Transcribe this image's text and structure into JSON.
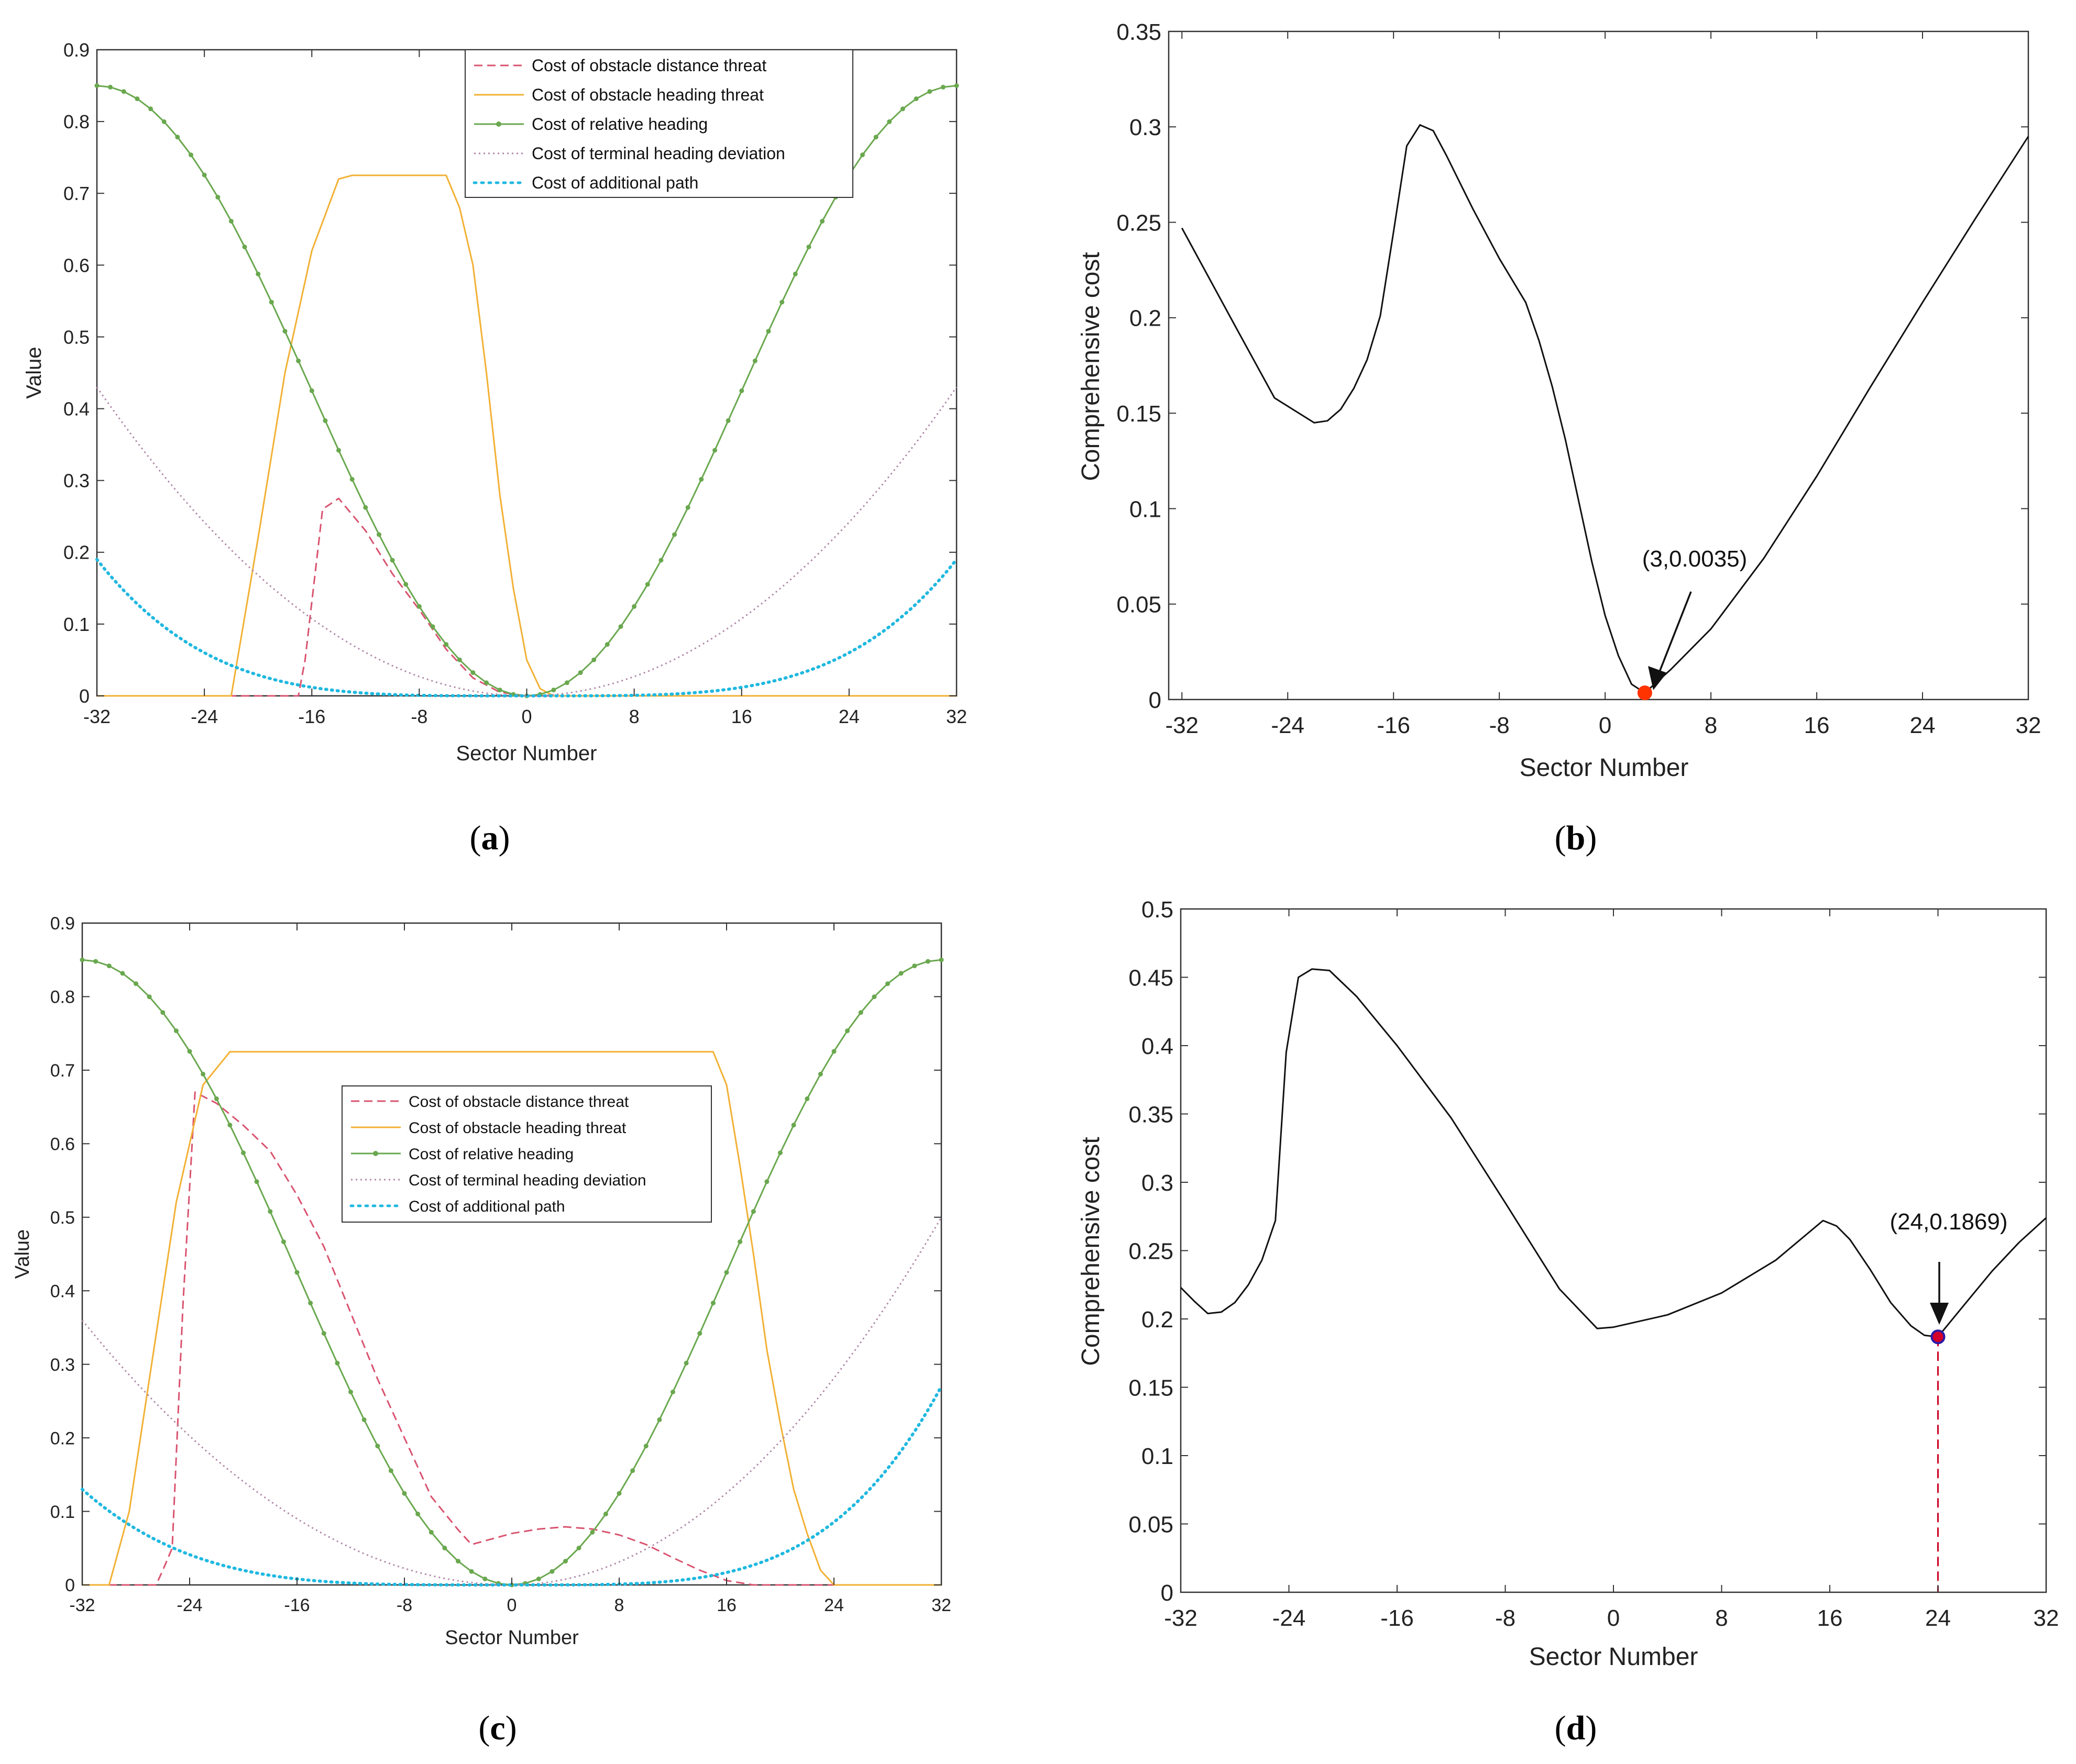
{
  "chart_data": [
    {
      "type": "line",
      "caption": "(a)",
      "caption_letter": "a",
      "xlabel": "Sector Number",
      "ylabel": "Value",
      "xlim": [
        -32,
        32
      ],
      "ylim": [
        0,
        0.9
      ],
      "xticks": [
        -32,
        -24,
        -16,
        -8,
        0,
        8,
        16,
        24,
        32
      ],
      "xtick_labels": [
        "-32",
        "-24",
        "-16",
        "-8",
        "0",
        "8",
        "16",
        "24",
        "32"
      ],
      "yticks": [
        0,
        0.1,
        0.2,
        0.3,
        0.4,
        0.5,
        0.6,
        0.7,
        0.8,
        0.9
      ],
      "ytick_labels": [
        "0",
        "0.1",
        "0.2",
        "0.3",
        "0.4",
        "0.5",
        "0.6",
        "0.7",
        "0.8",
        "0.9"
      ],
      "legend_position": "top-right",
      "series": [
        {
          "name": "Cost of obstacle distance threat",
          "color": "#d9536f",
          "style": "dashed",
          "points": [
            [
              -32,
              0
            ],
            [
              -17,
              0
            ],
            [
              -16.5,
              0.05
            ],
            [
              -15.2,
              0.26
            ],
            [
              -14,
              0.275
            ],
            [
              -12,
              0.23
            ],
            [
              -10,
              0.17
            ],
            [
              -8,
              0.12
            ],
            [
              -6,
              0.065
            ],
            [
              -4,
              0.025
            ],
            [
              -2,
              0.005
            ],
            [
              0,
              0
            ],
            [
              32,
              0
            ]
          ]
        },
        {
          "name": "Cost of obstacle heading threat",
          "color": "#f2b134",
          "style": "solid",
          "points": [
            [
              -32,
              0
            ],
            [
              -22,
              0
            ],
            [
              -20,
              0.22
            ],
            [
              -18,
              0.45
            ],
            [
              -16,
              0.62
            ],
            [
              -14,
              0.72
            ],
            [
              -13,
              0.725
            ],
            [
              -6,
              0.725
            ],
            [
              -5,
              0.68
            ],
            [
              -4,
              0.6
            ],
            [
              -3,
              0.45
            ],
            [
              -2,
              0.28
            ],
            [
              -1,
              0.15
            ],
            [
              0,
              0.05
            ],
            [
              1,
              0.01
            ],
            [
              2,
              0
            ],
            [
              32,
              0
            ]
          ]
        },
        {
          "name": "Cost of relative heading",
          "color": "#6aa84f",
          "style": "dot-marker",
          "fn": "cos",
          "a": 0.425,
          "period": 64,
          "from": -32,
          "to": 32,
          "step": 1
        },
        {
          "name": "Cost of terminal heading deviation",
          "color": "#b08aa8",
          "style": "dotted",
          "fn": "quad",
          "a": 0.43,
          "from": -32,
          "to": 32,
          "step": 0.5
        },
        {
          "name": "Cost of additional path",
          "color": "#1fb8e0",
          "style": "dense-dot",
          "fn": "quart",
          "a": 0.19,
          "from": -32,
          "to": 32,
          "step": 0.5
        }
      ]
    },
    {
      "type": "line",
      "caption": "(b)",
      "caption_letter": "b",
      "xlabel": "Sector Number",
      "ylabel": "Comprehensive cost",
      "xlim": [
        -33,
        32
      ],
      "ylim": [
        0,
        0.35
      ],
      "xticks": [
        -32,
        -24,
        -16,
        -8,
        0,
        8,
        16,
        24,
        32
      ],
      "xtick_labels": [
        "-32",
        "-24",
        "-16",
        "-8",
        "0",
        "8",
        "16",
        "24",
        "32"
      ],
      "yticks": [
        0,
        0.05,
        0.1,
        0.15,
        0.2,
        0.25,
        0.3,
        0.35
      ],
      "ytick_labels": [
        "0",
        "0.05",
        "0.1",
        "0.15",
        "0.2",
        "0.25",
        "0.3",
        "0.35"
      ],
      "series": [
        {
          "name": "Comprehensive cost",
          "color": "#111111",
          "style": "solid",
          "points": [
            [
              -32,
              0.247
            ],
            [
              -28,
              0.196
            ],
            [
              -25,
              0.158
            ],
            [
              -22,
              0.145
            ],
            [
              -21,
              0.146
            ],
            [
              -20,
              0.152
            ],
            [
              -19,
              0.163
            ],
            [
              -18,
              0.178
            ],
            [
              -17,
              0.201
            ],
            [
              -16,
              0.245
            ],
            [
              -15,
              0.29
            ],
            [
              -14,
              0.301
            ],
            [
              -13,
              0.298
            ],
            [
              -12,
              0.285
            ],
            [
              -10,
              0.257
            ],
            [
              -8,
              0.231
            ],
            [
              -6,
              0.208
            ],
            [
              -5,
              0.188
            ],
            [
              -4,
              0.164
            ],
            [
              -3,
              0.136
            ],
            [
              -2,
              0.104
            ],
            [
              -1,
              0.072
            ],
            [
              0,
              0.044
            ],
            [
              1,
              0.023
            ],
            [
              2,
              0.008
            ],
            [
              3,
              0.0035
            ],
            [
              5,
              0.016
            ],
            [
              8,
              0.037
            ],
            [
              12,
              0.074
            ],
            [
              16,
              0.117
            ],
            [
              20,
              0.163
            ],
            [
              24,
              0.208
            ],
            [
              28,
              0.252
            ],
            [
              32,
              0.295
            ]
          ]
        }
      ],
      "marker": {
        "x": 3,
        "y": 0.0035,
        "label": "(3,0.0035)",
        "color": "#ff3300"
      }
    },
    {
      "type": "line",
      "caption": "(c)",
      "caption_letter": "c",
      "xlabel": "Sector Number",
      "ylabel": "Value",
      "xlim": [
        -32,
        32
      ],
      "ylim": [
        0,
        0.9
      ],
      "xticks": [
        -32,
        -24,
        -16,
        -8,
        0,
        8,
        16,
        24,
        32
      ],
      "xtick_labels": [
        "-32",
        "-24",
        "-16",
        "-8",
        "0",
        "8",
        "16",
        "24",
        "32"
      ],
      "yticks": [
        0,
        0.1,
        0.2,
        0.3,
        0.4,
        0.5,
        0.6,
        0.7,
        0.8,
        0.9
      ],
      "ytick_labels": [
        "0",
        "0.1",
        "0.2",
        "0.3",
        "0.4",
        "0.5",
        "0.6",
        "0.7",
        "0.8",
        "0.9"
      ],
      "legend_position": "center",
      "series": [
        {
          "name": "Cost of obstacle distance threat",
          "color": "#d9536f",
          "style": "dashed",
          "points": [
            [
              -32,
              0
            ],
            [
              -26.5,
              0
            ],
            [
              -26,
              0.02
            ],
            [
              -25.3,
              0.05
            ],
            [
              -24.5,
              0.38
            ],
            [
              -23.6,
              0.67
            ],
            [
              -22,
              0.655
            ],
            [
              -20,
              0.625
            ],
            [
              -18,
              0.59
            ],
            [
              -16,
              0.53
            ],
            [
              -14,
              0.46
            ],
            [
              -12,
              0.37
            ],
            [
              -10,
              0.28
            ],
            [
              -8,
              0.2
            ],
            [
              -6,
              0.12
            ],
            [
              -4,
              0.075
            ],
            [
              -3,
              0.055
            ],
            [
              -2,
              0.06
            ],
            [
              0,
              0.07
            ],
            [
              2,
              0.076
            ],
            [
              4,
              0.079
            ],
            [
              6,
              0.076
            ],
            [
              8,
              0.068
            ],
            [
              10,
              0.055
            ],
            [
              12,
              0.037
            ],
            [
              14,
              0.02
            ],
            [
              16,
              0.006
            ],
            [
              18,
              0
            ],
            [
              32,
              0
            ]
          ]
        },
        {
          "name": "Cost of obstacle heading threat",
          "color": "#f2b134",
          "style": "solid",
          "points": [
            [
              -32,
              0
            ],
            [
              -30,
              0
            ],
            [
              -28.5,
              0.1
            ],
            [
              -27,
              0.28
            ],
            [
              -25,
              0.52
            ],
            [
              -23,
              0.68
            ],
            [
              -21,
              0.725
            ],
            [
              15,
              0.725
            ],
            [
              16,
              0.68
            ],
            [
              17,
              0.57
            ],
            [
              18,
              0.45
            ],
            [
              19,
              0.32
            ],
            [
              20,
              0.22
            ],
            [
              21,
              0.13
            ],
            [
              22,
              0.07
            ],
            [
              23,
              0.02
            ],
            [
              24,
              0
            ],
            [
              32,
              0
            ]
          ]
        },
        {
          "name": "Cost of relative heading",
          "color": "#6aa84f",
          "style": "dot-marker",
          "fn": "cos",
          "a": 0.425,
          "period": 64,
          "from": -32,
          "to": 32,
          "step": 1
        },
        {
          "name": "Cost of terminal heading deviation",
          "color": "#b08aa8",
          "style": "dotted",
          "fn": "quadoff",
          "a": 0.36,
          "b": 0.5,
          "from": -32,
          "to": 32,
          "step": 0.5
        },
        {
          "name": "Cost of additional path",
          "color": "#1fb8e0",
          "style": "dense-dot",
          "fn": "quartoff",
          "a": 0.13,
          "b": 0.27,
          "from": -32,
          "to": 32,
          "step": 0.5
        }
      ]
    },
    {
      "type": "line",
      "caption": "(d)",
      "caption_letter": "d",
      "xlabel": "Sector Number",
      "ylabel": "Comprehensive cost",
      "xlim": [
        -32,
        32
      ],
      "ylim": [
        0,
        0.5
      ],
      "xticks": [
        -32,
        -24,
        -16,
        -8,
        0,
        8,
        16,
        24,
        32
      ],
      "xtick_labels": [
        "-32",
        "-24",
        "-16",
        "-8",
        "0",
        "8",
        "16",
        "24",
        "32"
      ],
      "yticks": [
        0,
        0.05,
        0.1,
        0.15,
        0.2,
        0.25,
        0.3,
        0.35,
        0.4,
        0.45,
        0.5
      ],
      "ytick_labels": [
        "0",
        "0.05",
        "0.1",
        "0.15",
        "0.2",
        "0.25",
        "0.3",
        "0.35",
        "0.4",
        "0.45",
        "0.5"
      ],
      "series": [
        {
          "name": "Comprehensive cost",
          "color": "#111111",
          "style": "solid",
          "points": [
            [
              -32,
              0.223
            ],
            [
              -31,
              0.213
            ],
            [
              -30,
              0.204
            ],
            [
              -29,
              0.205
            ],
            [
              -28,
              0.212
            ],
            [
              -27,
              0.225
            ],
            [
              -26,
              0.243
            ],
            [
              -25,
              0.272
            ],
            [
              -24.2,
              0.395
            ],
            [
              -23.3,
              0.45
            ],
            [
              -22.3,
              0.456
            ],
            [
              -21,
              0.455
            ],
            [
              -19,
              0.436
            ],
            [
              -16,
              0.4
            ],
            [
              -12,
              0.347
            ],
            [
              -8,
              0.285
            ],
            [
              -4,
              0.222
            ],
            [
              -1.2,
              0.193
            ],
            [
              0,
              0.194
            ],
            [
              4,
              0.203
            ],
            [
              8,
              0.219
            ],
            [
              12,
              0.243
            ],
            [
              15.5,
              0.272
            ],
            [
              16.5,
              0.268
            ],
            [
              17.5,
              0.258
            ],
            [
              19,
              0.236
            ],
            [
              20.5,
              0.212
            ],
            [
              22,
              0.195
            ],
            [
              23,
              0.188
            ],
            [
              24,
              0.1869
            ],
            [
              26,
              0.211
            ],
            [
              28,
              0.235
            ],
            [
              30,
              0.256
            ],
            [
              32,
              0.274
            ]
          ]
        }
      ],
      "marker": {
        "x": 24,
        "y": 0.1869,
        "label": "(24,0.1869)",
        "color": "#2a1aa8",
        "fill": "#d4002a",
        "dropline_color": "#cc0022"
      }
    }
  ]
}
